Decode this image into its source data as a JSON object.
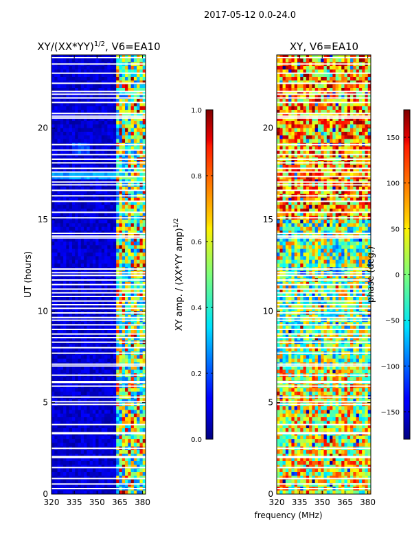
{
  "figure_title": "2017-05-12 0.0-24.0",
  "chart_data": [
    {
      "type": "heatmap",
      "title_main": "XY/(XX*YY)",
      "title_sup": "1/2",
      "title_rest": ", V6=EA10",
      "ylabel": "UT (hours)",
      "xlabel": "",
      "xlim": [
        320,
        382
      ],
      "ylim": [
        0,
        24
      ],
      "xticks": [
        320,
        335,
        350,
        365,
        380
      ],
      "yticks": [
        0,
        5,
        10,
        15,
        20
      ],
      "colorbar": {
        "label_main": "XY amp. / (XX*YY amp)",
        "label_sup": "1/2",
        "range": [
          0.0,
          1.0
        ],
        "ticks": [
          "0.0",
          "0.2",
          "0.4",
          "0.6",
          "0.8",
          "1.0"
        ],
        "tick_values": [
          0.0,
          0.2,
          0.4,
          0.6,
          0.8,
          1.0
        ]
      }
    },
    {
      "type": "heatmap",
      "title": "XY, V6=EA10",
      "xlabel": "frequency (MHz)",
      "ylabel": "",
      "xlim": [
        320,
        382
      ],
      "ylim": [
        0,
        24
      ],
      "xticks": [
        320,
        335,
        350,
        365,
        380
      ],
      "yticks": [
        0,
        5,
        10,
        15,
        20
      ],
      "colorbar": {
        "label": "phase (deg.)",
        "range": [
          -180,
          180
        ],
        "ticks": [
          "−150",
          "−100",
          "−50",
          "0",
          "50",
          "100",
          "150"
        ],
        "tick_values": [
          -150,
          -100,
          -50,
          0,
          50,
          100,
          150
        ]
      }
    }
  ],
  "colormap": "jet",
  "flagged_hours": [
    0.3,
    0.55,
    0.85,
    1.45,
    2.0,
    2.05,
    2.5,
    3.3,
    3.35,
    3.8,
    4.9,
    5.05,
    5.3,
    5.9,
    6.1,
    6.15,
    6.5,
    7.0,
    7.1,
    7.7,
    8.0,
    8.3,
    8.55,
    8.75,
    9.0,
    9.25,
    9.5,
    9.65,
    9.9,
    10.15,
    10.35,
    10.55,
    10.8,
    11.0,
    11.2,
    11.45,
    11.7,
    11.95,
    12.1,
    12.3,
    14.0,
    14.1,
    14.25,
    15.1,
    15.4,
    16.0,
    16.3,
    16.6,
    16.9,
    17.05,
    17.35,
    17.6,
    17.8,
    18.1,
    18.3,
    18.55,
    18.8,
    19.1,
    20.55,
    20.65,
    20.8,
    21.4,
    21.65,
    21.85,
    22.0,
    22.45,
    23.0,
    23.5,
    23.85
  ]
}
